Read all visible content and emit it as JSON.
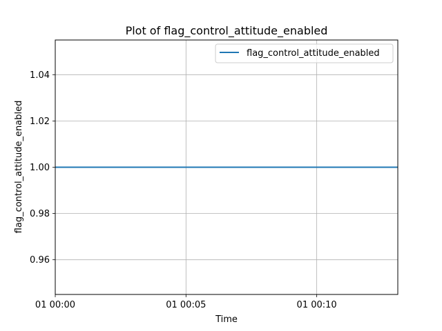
{
  "chart_data": {
    "type": "line",
    "title": "Plot of flag_control_attitude_enabled",
    "xlabel": "Time",
    "ylabel": "flag_control_attitude_enabled",
    "x_ticks": [
      {
        "value": 0,
        "label": "01 00:00"
      },
      {
        "value": 5,
        "label": "01 00:05"
      },
      {
        "value": 10,
        "label": "01 00:10"
      }
    ],
    "y_ticks": [
      {
        "value": 0.96,
        "label": "0.96"
      },
      {
        "value": 0.98,
        "label": "0.98"
      },
      {
        "value": 1.0,
        "label": "1.00"
      },
      {
        "value": 1.02,
        "label": "1.02"
      },
      {
        "value": 1.04,
        "label": "1.04"
      }
    ],
    "xlim": [
      0,
      13.1
    ],
    "ylim": [
      0.945,
      1.055
    ],
    "grid": true,
    "legend_position": "top-right",
    "series": [
      {
        "name": "flag_control_attitude_enabled",
        "color": "#1f77b4",
        "x": [
          0,
          13.1
        ],
        "y": [
          1.0,
          1.0
        ]
      }
    ]
  }
}
